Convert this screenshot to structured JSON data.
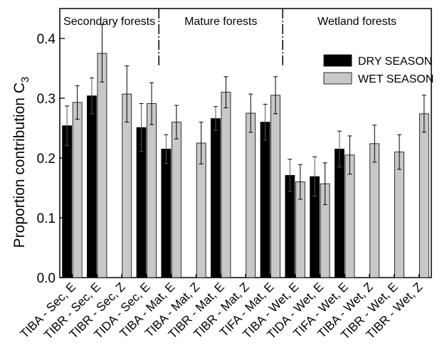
{
  "chart_data": {
    "type": "bar",
    "ylabel": "Proportion contribution C",
    "ylabel_subscript": "3",
    "ylim": [
      0,
      0.45
    ],
    "yticks": [
      "0.0",
      "0.1",
      "0.2",
      "0.3",
      "0.4"
    ],
    "ytick_values": [
      0.0,
      0.1,
      0.2,
      0.3,
      0.4
    ],
    "categories": [
      "TIBA - Sec, E",
      "TIBR - Sec, E",
      "TIBR - Sec, Z",
      "TIDA - Sec, E",
      "TIBA - Mat, E",
      "TIBA - Mat, Z",
      "TIBR - Mat, E",
      "TIBR - Mat, Z",
      "TIFA - Mat, E",
      "TIBA - Wet, E",
      "TIDA - Wet, E",
      "TIFA - Wet, E",
      "TIBA - Wet, Z",
      "TIBR - Wet, E",
      "TIBR - Wet, Z"
    ],
    "series": [
      {
        "name": "DRY SEASON",
        "color": "#000000",
        "values": [
          0.254,
          0.304,
          null,
          0.251,
          0.215,
          null,
          0.266,
          null,
          0.26,
          0.171,
          0.169,
          0.215,
          null,
          null,
          null
        ],
        "errors": [
          0.033,
          0.03,
          null,
          0.04,
          0.024,
          null,
          0.02,
          null,
          0.03,
          0.027,
          0.033,
          0.03,
          null,
          null,
          null
        ]
      },
      {
        "name": "WET SEASON",
        "color": "#c8c8c8",
        "values": [
          0.293,
          0.375,
          0.307,
          0.291,
          0.26,
          0.225,
          0.31,
          0.275,
          0.305,
          0.16,
          0.157,
          0.205,
          0.224,
          0.21,
          0.274
        ],
        "errors": [
          0.028,
          0.048,
          0.047,
          0.035,
          0.028,
          0.035,
          0.026,
          0.032,
          0.031,
          0.029,
          0.035,
          0.032,
          0.031,
          0.029,
          0.031
        ]
      }
    ],
    "groups": [
      {
        "label": "Secondary forests",
        "start": 0,
        "end": 3
      },
      {
        "label": "Mature forests",
        "start": 4,
        "end": 8
      },
      {
        "label": "Wetland forests",
        "start": 9,
        "end": 14
      }
    ],
    "legend": {
      "placement": "upper-right"
    },
    "grid": false
  }
}
